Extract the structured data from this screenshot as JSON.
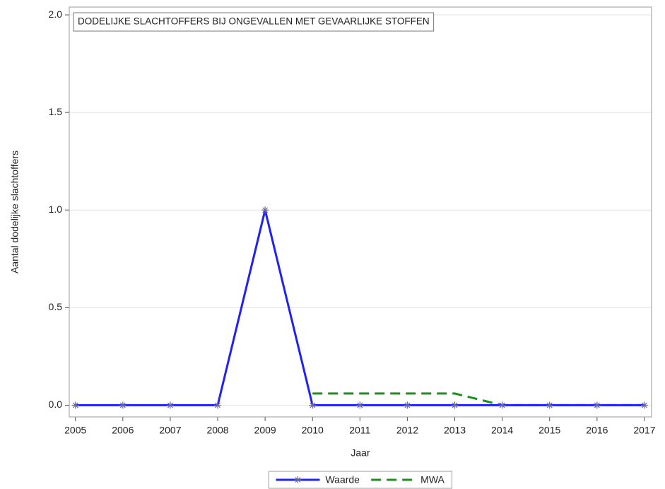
{
  "chart_data": {
    "type": "line",
    "title": "DODELIJKE SLACHTOFFERS BIJ ONGEVALLEN MET GEVAARLIJKE STOFFEN",
    "x_label": "Jaar",
    "y_label": "Aantal dodelijke slachtoffers",
    "x": [
      2005,
      2006,
      2007,
      2008,
      2009,
      2010,
      2011,
      2012,
      2013,
      2014,
      2015,
      2016,
      2017
    ],
    "series": [
      {
        "name": "Waarde",
        "color": "#1f1fff",
        "dash": false,
        "marker": true,
        "values": [
          0,
          0,
          0,
          0,
          1,
          0,
          0,
          0,
          0,
          0,
          0,
          0,
          0
        ]
      },
      {
        "name": "MWA",
        "color": "#1e8c1e",
        "dash": true,
        "marker": false,
        "values": [
          null,
          null,
          null,
          null,
          null,
          0.06,
          0.06,
          0.06,
          0.06,
          0,
          0,
          0,
          0
        ]
      }
    ],
    "xlim": [
      2004.87,
      2017.15
    ],
    "xticks": [
      2005,
      2006,
      2007,
      2008,
      2009,
      2010,
      2011,
      2012,
      2013,
      2014,
      2015,
      2016,
      2017
    ],
    "ylim": [
      -0.06,
      2.04
    ],
    "yticks": [
      {
        "value": 0,
        "label": "0.0"
      },
      0.5,
      {
        "value": 1,
        "label": "1.0"
      },
      1.5,
      {
        "value": 2,
        "label": "2.0"
      }
    ],
    "grid": true,
    "legend": "bottom"
  }
}
